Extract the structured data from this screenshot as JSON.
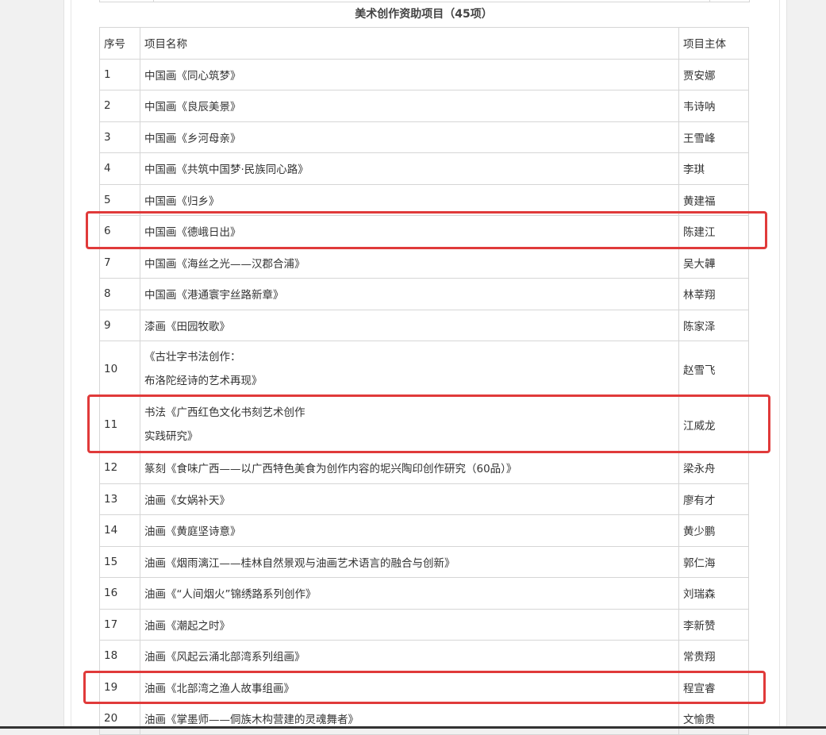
{
  "section_title": "美术创作资助项目（45项）",
  "table": {
    "headers": [
      "序号",
      "项目名称",
      "项目主体"
    ],
    "rows": [
      {
        "no": "1",
        "name": [
          "中国画《同心筑梦》"
        ],
        "owner": "贾安娜"
      },
      {
        "no": "2",
        "name": [
          "中国画《良辰美景》"
        ],
        "owner": "韦诗呐"
      },
      {
        "no": "3",
        "name": [
          "中国画《乡河母亲》"
        ],
        "owner": "王雪峰"
      },
      {
        "no": "4",
        "name": [
          "中国画《共筑中国梦·民族同心路》"
        ],
        "owner": "李琪"
      },
      {
        "no": "5",
        "name": [
          "中国画《归乡》"
        ],
        "owner": "黄建福"
      },
      {
        "no": "6",
        "name": [
          "中国画《德峨日出》"
        ],
        "owner": "陈建江",
        "highlighted": true
      },
      {
        "no": "7",
        "name": [
          "中国画《海丝之光——汉郡合浦》"
        ],
        "owner": "吴大韡"
      },
      {
        "no": "8",
        "name": [
          "中国画《港通寰宇丝路新章》"
        ],
        "owner": "林莘翔"
      },
      {
        "no": "9",
        "name": [
          "漆画《田园牧歌》"
        ],
        "owner": "陈家泽"
      },
      {
        "no": "10",
        "name": [
          "《古壮字书法创作：",
          "布洛陀经诗的艺术再现》"
        ],
        "owner": "赵雪飞"
      },
      {
        "no": "11",
        "name": [
          "书法《广西红色文化书刻艺术创作",
          "实践研究》"
        ],
        "owner": "江威龙",
        "highlighted": true
      },
      {
        "no": "12",
        "name": [
          "篆刻《食味广西——以广西特色美食为创作内容的坭兴陶印创作研究（60品）》"
        ],
        "owner": "梁永舟"
      },
      {
        "no": "13",
        "name": [
          "油画《女娲补天》"
        ],
        "owner": "廖有才"
      },
      {
        "no": "14",
        "name": [
          "油画《黄庭坚诗意》"
        ],
        "owner": "黄少鹏"
      },
      {
        "no": "15",
        "name": [
          "油画《烟雨漓江——桂林自然景观与油画艺术语言的融合与创新》"
        ],
        "owner": "郭仁海"
      },
      {
        "no": "16",
        "name": [
          "油画《“人间烟火”锦绣路系列创作》"
        ],
        "owner": "刘瑞森"
      },
      {
        "no": "17",
        "name": [
          "油画《潮起之时》"
        ],
        "owner": "李新赞"
      },
      {
        "no": "18",
        "name": [
          "油画《风起云涌北部湾系列组画》"
        ],
        "owner": "常贵翔"
      },
      {
        "no": "19",
        "name": [
          "油画《北部湾之渔人故事组画》"
        ],
        "owner": "程宣睿",
        "highlighted": true
      },
      {
        "no": "20",
        "name": [
          "油画《掌墨师——侗族木构营建的灵魂舞者》"
        ],
        "owner": "文愉贵"
      }
    ]
  },
  "highlight_color": "#e03a3a"
}
